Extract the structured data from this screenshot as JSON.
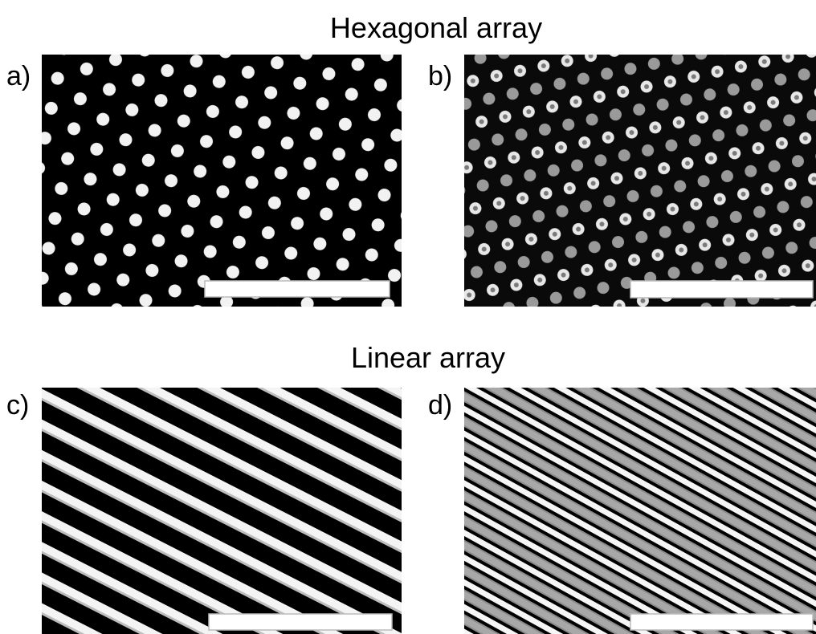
{
  "figure": {
    "sections": [
      {
        "title": "Hexagonal array",
        "panels": [
          {
            "label": "a)"
          },
          {
            "label": "b)"
          }
        ]
      },
      {
        "title": "Linear array",
        "panels": [
          {
            "label": "c)"
          },
          {
            "label": "d)"
          }
        ]
      }
    ]
  }
}
